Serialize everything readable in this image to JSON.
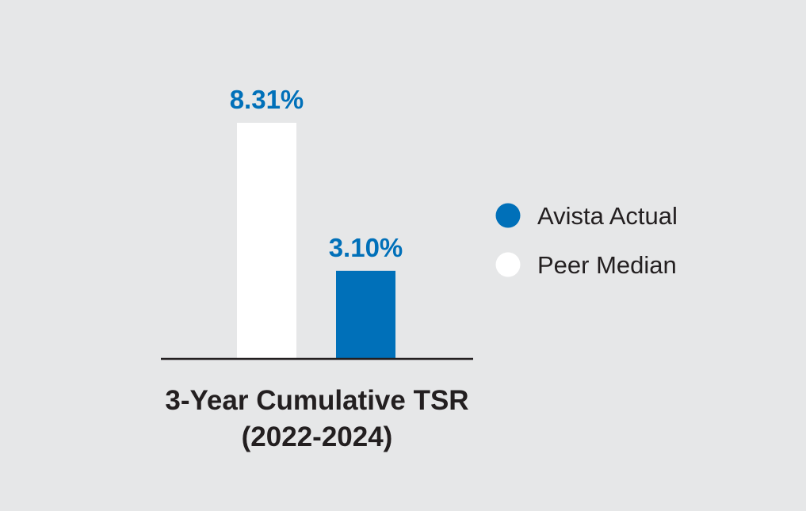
{
  "chart_data": {
    "type": "bar",
    "title": "3-Year Cumulative TSR",
    "subtitle": "(2022-2024)",
    "categories": [
      "3-Year Cumulative TSR (2022-2024)"
    ],
    "series": [
      {
        "name": "Peer Median",
        "values": [
          8.31
        ],
        "label": "8.31%",
        "color": "#ffffff"
      },
      {
        "name": "Avista Actual",
        "values": [
          3.1
        ],
        "label": "3.10%",
        "color": "#0070b9"
      }
    ],
    "ylim": [
      0,
      8.31
    ],
    "unit": "%",
    "grid": false,
    "legend": {
      "position": "right",
      "entries": [
        {
          "name": "Avista Actual",
          "color": "#0070b9"
        },
        {
          "name": "Peer Median",
          "color": "#ffffff"
        }
      ]
    },
    "label_color": "#0070b9",
    "axis_color": "#231f20",
    "background": "#e6e7e8"
  }
}
